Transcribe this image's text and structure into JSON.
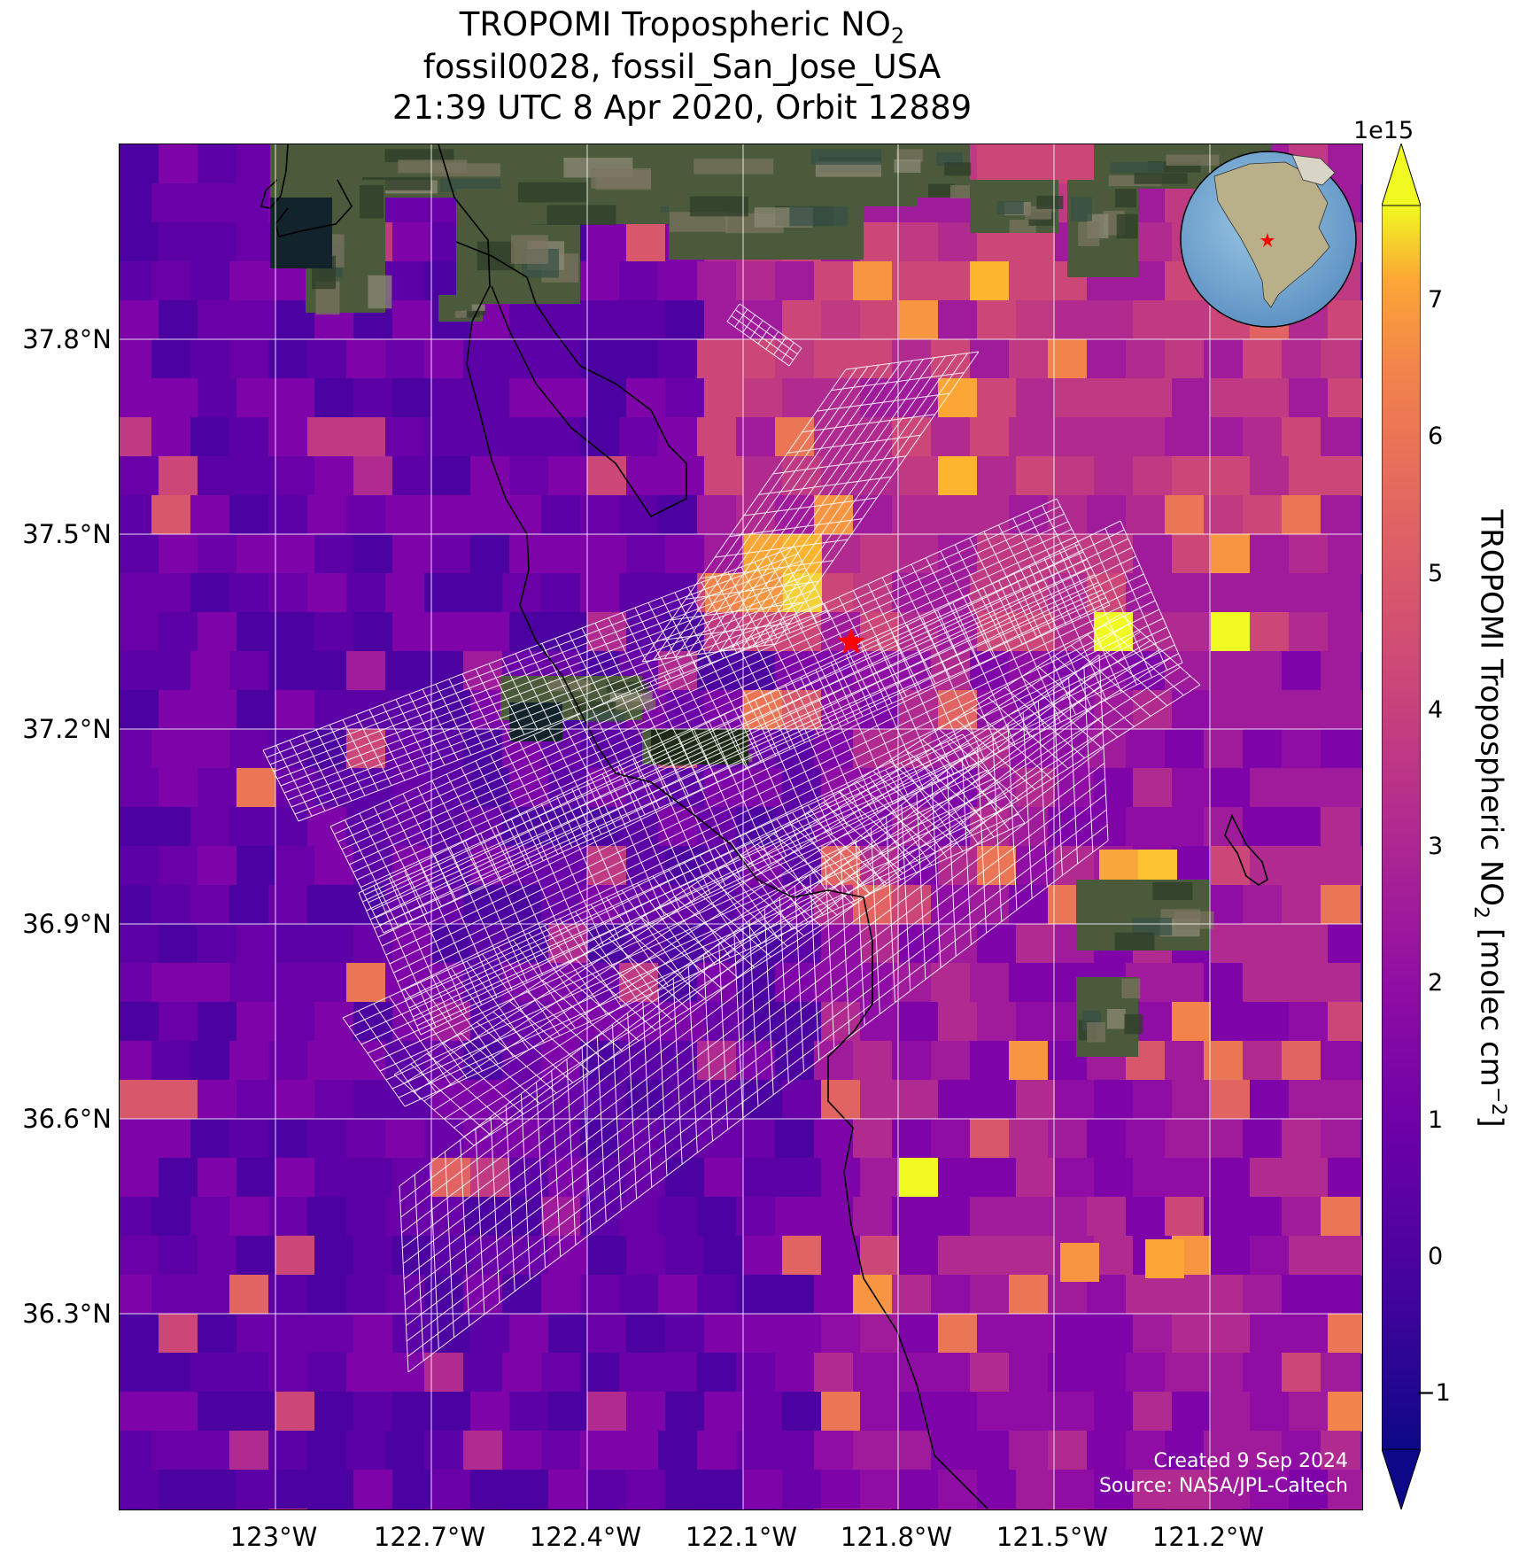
{
  "title": {
    "line1_prefix": "TROPOMI Tropospheric NO",
    "line1_subscript": "2",
    "line2": "fossil0028, fossil_San_Jose_USA",
    "line3": "21:39 UTC 8 Apr 2020, Orbit 12889"
  },
  "map": {
    "lat_labels": [
      "37.8°N",
      "37.5°N",
      "37.2°N",
      "36.9°N",
      "36.6°N",
      "36.3°N"
    ],
    "lon_labels": [
      "123°W",
      "122.7°W",
      "122.4°W",
      "122.1°W",
      "121.8°W",
      "121.5°W",
      "121.2°W"
    ],
    "target_marker": {
      "lat": 37.33,
      "lon": -121.89,
      "color": "#ff0000",
      "shape": "star"
    },
    "credits": [
      "Created 9 Sep 2024",
      "Source: NASA/JPL-Caltech"
    ],
    "colors": {
      "ocean_background": "#5a12a2",
      "grid_line": "#ffffff",
      "footprint_outline": "#ffffff",
      "coastline": "#000000"
    }
  },
  "colorbar": {
    "offset_label": "1e15",
    "ticks": [
      "−1",
      "0",
      "1",
      "2",
      "3",
      "4",
      "5",
      "6",
      "7"
    ],
    "range": [
      -1.4,
      7.7
    ],
    "colormap": "plasma",
    "label_prefix": "TROPOMI Tropospheric NO",
    "label_sub": "2",
    "label_mid": " [molec cm",
    "label_sup": "−2",
    "label_suffix": "]"
  },
  "inset_globe": {
    "marker_color": "#ff0000"
  }
}
